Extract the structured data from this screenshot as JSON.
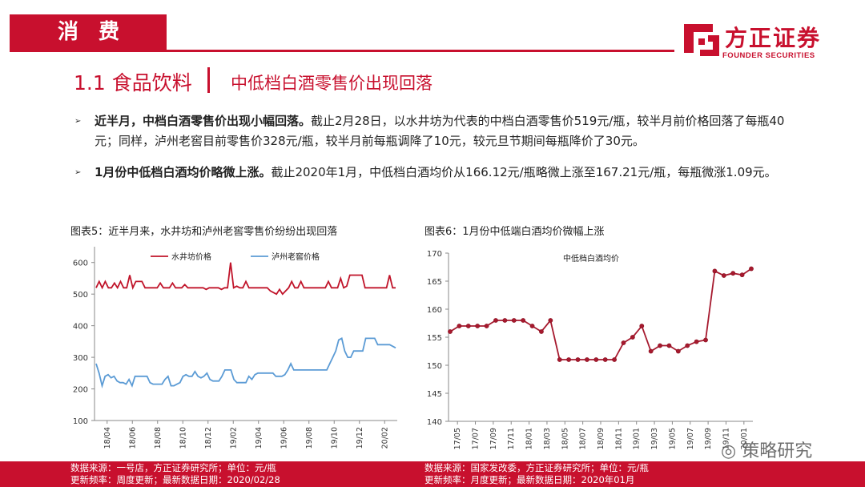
{
  "section": {
    "tab_label": "消 费"
  },
  "brand": {
    "name_cn": "方正证券",
    "name_en": "FOUNDER SECURITIES",
    "color": "#c8102e"
  },
  "title": {
    "number_topic": "1.1 食品饮料",
    "headline": "中低档白酒零售价出现回落"
  },
  "bullets": [
    {
      "bold": "近半月，中档白酒零售价出现小幅回落。",
      "text": "截止2月28日，以水井坊为代表的中档白酒零售价519元/瓶，较半月前价格回落了每瓶40元；同样，泸州老窖目前零售价328元/瓶，较半月前每瓶调降了10元，较元旦节期间每瓶降价了30元。"
    },
    {
      "bold": "1月份中低档白酒均价略微上涨。",
      "text": "截止2020年1月，中低档白酒均价从166.12元/瓶略微上涨至167.21元/瓶，每瓶微涨1.09元。"
    }
  ],
  "figures": {
    "fig5_title": "图表5：近半月来，水井坊和泸州老窖零售价纷纷出现回落",
    "fig6_title": "图表6：1月份中低端白酒均价微幅上涨"
  },
  "footer": {
    "left_source": "数据来源：一号店，方正证券研究所；单位：元/瓶",
    "left_update": "更新频率：周度更新；最新数据日期：2020/02/28",
    "right_source": "数据来源：国家发改委，方正证券研究所；单位：元/瓶",
    "right_update": "更新频率：月度更新；最新数据日期：2020年01月"
  },
  "watermark": "策略研究",
  "chart_data": [
    {
      "type": "line",
      "xlabel": "",
      "ylabel": "",
      "ylim": [
        100,
        650
      ],
      "yticks": [
        100,
        200,
        300,
        400,
        500,
        600
      ],
      "xticks": [
        "18/04",
        "18/06",
        "18/08",
        "18/10",
        "18/12",
        "19/02",
        "19/04",
        "19/06",
        "19/08",
        "19/10",
        "19/12",
        "20/02"
      ],
      "legend": "top",
      "series": [
        {
          "name": "水井坊价格",
          "color": "#c0142a",
          "values": [
            520,
            540,
            520,
            540,
            520,
            520,
            535,
            520,
            540,
            520,
            520,
            560,
            520,
            540,
            540,
            540,
            520,
            520,
            520,
            520,
            520,
            535,
            520,
            520,
            520,
            535,
            520,
            520,
            520,
            530,
            520,
            520,
            520,
            520,
            520,
            520,
            515,
            520,
            520,
            520,
            520,
            515,
            520,
            520,
            600,
            520,
            525,
            520,
            520,
            540,
            520,
            520,
            520,
            520,
            520,
            520,
            520,
            510,
            505,
            500,
            515,
            500,
            510,
            520,
            540,
            520,
            520,
            540,
            520,
            520,
            520,
            520,
            520,
            520,
            520,
            520,
            540,
            520,
            520,
            520,
            550,
            520,
            525,
            560,
            560,
            560,
            560,
            560,
            520,
            520,
            520,
            520,
            520,
            520,
            520,
            520,
            560,
            520,
            520
          ]
        },
        {
          "name": "泸州老窖价格",
          "color": "#5b9bd5",
          "values": [
            280,
            250,
            210,
            240,
            245,
            235,
            240,
            225,
            220,
            220,
            215,
            230,
            210,
            240,
            240,
            240,
            240,
            240,
            220,
            215,
            215,
            215,
            215,
            230,
            240,
            210,
            210,
            215,
            220,
            240,
            245,
            240,
            240,
            255,
            240,
            235,
            240,
            250,
            230,
            225,
            225,
            225,
            240,
            260,
            260,
            260,
            230,
            220,
            220,
            220,
            220,
            240,
            230,
            245,
            250,
            250,
            250,
            250,
            250,
            250,
            240,
            240,
            240,
            245,
            260,
            280,
            260,
            260,
            260,
            260,
            260,
            260,
            260,
            260,
            260,
            260,
            260,
            260,
            280,
            300,
            320,
            355,
            360,
            320,
            300,
            300,
            320,
            320,
            320,
            320,
            360,
            360,
            360,
            360,
            340,
            340,
            340,
            340,
            340,
            335,
            330
          ]
        }
      ]
    },
    {
      "type": "line",
      "xlabel": "",
      "ylabel": "",
      "ylim": [
        140,
        170
      ],
      "yticks": [
        140,
        145,
        150,
        155,
        160,
        165,
        170
      ],
      "xticks": [
        "17/05",
        "17/07",
        "17/09",
        "17/11",
        "18/01",
        "18/03",
        "18/05",
        "18/07",
        "18/09",
        "18/11",
        "19/01",
        "19/03",
        "19/05",
        "19/07",
        "19/09",
        "19/11",
        "20/01"
      ],
      "legend": "top",
      "series": [
        {
          "name": "中低档白酒均价",
          "color": "#a6192e",
          "values": [
            156,
            157,
            157,
            157,
            157,
            158,
            158,
            158,
            158,
            157,
            156,
            158,
            151,
            151,
            151,
            151,
            151,
            151,
            151,
            154,
            155,
            157,
            152.5,
            153.5,
            153.5,
            152.5,
            153.5,
            154.2,
            154.5,
            166.8,
            166,
            166.4,
            166.12,
            167.21
          ]
        }
      ]
    }
  ]
}
